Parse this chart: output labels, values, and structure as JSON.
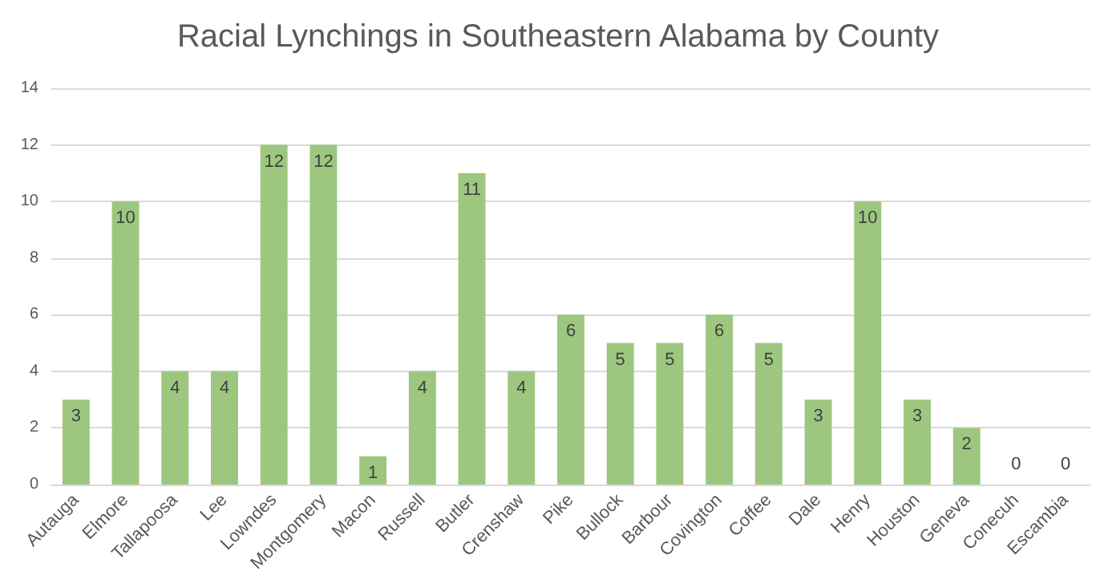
{
  "chart_data": {
    "type": "bar",
    "title": "Racial Lynchings in Southeastern Alabama by County",
    "categories": [
      "Autauga",
      "Elmore",
      "Tallapoosa",
      "Lee",
      "Lowndes",
      "Montgomery",
      "Macon",
      "Russell",
      "Butler",
      "Crenshaw",
      "Pike",
      "Bullock",
      "Barbour",
      "Covington",
      "Coffee",
      "Dale",
      "Henry",
      "Houston",
      "Geneva",
      "Conecuh",
      "Escambia"
    ],
    "values": [
      3,
      10,
      4,
      4,
      12,
      12,
      1,
      4,
      11,
      4,
      6,
      5,
      5,
      6,
      5,
      3,
      10,
      3,
      2,
      0,
      0
    ],
    "color": "#9dc77f",
    "ylim": [
      0,
      14
    ],
    "yticks": [
      0,
      2,
      4,
      6,
      8,
      10,
      12,
      14
    ],
    "grid": "y",
    "data_labels": true
  }
}
